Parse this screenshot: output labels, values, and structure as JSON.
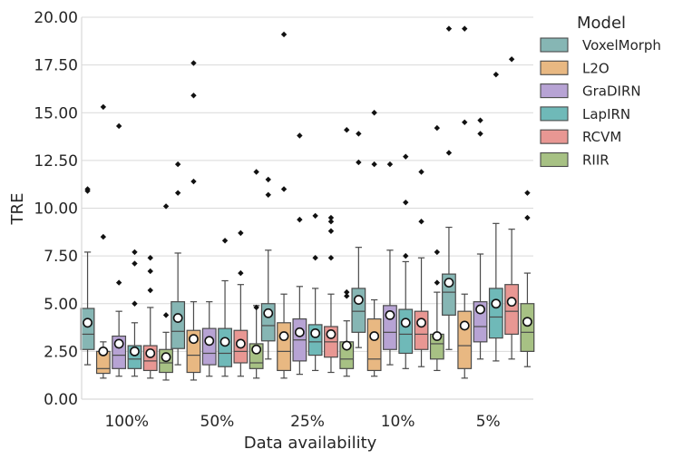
{
  "chart_data": {
    "type": "boxplot",
    "ylabel": "TRE",
    "xlabel": "Data availability",
    "ylim": [
      0,
      20
    ],
    "yticks": [
      "0.00",
      "2.50",
      "5.00",
      "7.50",
      "10.00",
      "12.50",
      "15.00",
      "17.50",
      "20.00"
    ],
    "grid": "horizontal",
    "legend_placement": "right",
    "legend_title": "Model",
    "categories": [
      "100%",
      "50%",
      "25%",
      "10%",
      "5%"
    ],
    "series": [
      {
        "name": "VoxelMorph",
        "color": "#86b6b4",
        "boxes": [
          {
            "whisker_low": 1.8,
            "q1": 2.6,
            "median": 3.4,
            "q3": 4.75,
            "whisker_high": 7.7,
            "mean": 4.0,
            "outliers": [
              10.9,
              11.0
            ]
          },
          {
            "whisker_low": 1.8,
            "q1": 2.65,
            "median": 3.55,
            "q3": 5.1,
            "whisker_high": 7.65,
            "mean": 4.25,
            "outliers": [
              10.8,
              12.3
            ]
          },
          {
            "whisker_low": 2.1,
            "q1": 3.05,
            "median": 3.85,
            "q3": 5.0,
            "whisker_high": 7.8,
            "mean": 4.5,
            "outliers": [
              10.7,
              11.5
            ]
          },
          {
            "whisker_low": 2.7,
            "q1": 3.5,
            "median": 4.6,
            "q3": 5.8,
            "whisker_high": 7.95,
            "mean": 5.2,
            "outliers": [
              12.4,
              13.9
            ]
          },
          {
            "whisker_low": 2.6,
            "q1": 4.4,
            "median": 5.6,
            "q3": 6.55,
            "whisker_high": 9.0,
            "mean": 6.1,
            "outliers": [
              12.9,
              19.4
            ]
          }
        ]
      },
      {
        "name": "L2O",
        "color": "#e8b882",
        "boxes": [
          {
            "whisker_low": 1.1,
            "q1": 1.35,
            "median": 1.6,
            "q3": 2.5,
            "whisker_high": 3.0,
            "mean": 2.5,
            "outliers": [
              8.5,
              15.3
            ]
          },
          {
            "whisker_low": 1.0,
            "q1": 1.4,
            "median": 2.3,
            "q3": 3.6,
            "whisker_high": 5.1,
            "mean": 3.15,
            "outliers": [
              11.4,
              15.9,
              17.6
            ]
          },
          {
            "whisker_low": 1.1,
            "q1": 1.5,
            "median": 2.5,
            "q3": 4.0,
            "whisker_high": 5.5,
            "mean": 3.3,
            "outliers": [
              11.0,
              19.1
            ]
          },
          {
            "whisker_low": 1.2,
            "q1": 1.5,
            "median": 2.1,
            "q3": 4.2,
            "whisker_high": 5.2,
            "mean": 3.3,
            "outliers": [
              12.3,
              15.0
            ]
          },
          {
            "whisker_low": 1.1,
            "q1": 1.6,
            "median": 2.8,
            "q3": 4.6,
            "whisker_high": 5.5,
            "mean": 3.85,
            "outliers": [
              14.5,
              19.4
            ]
          }
        ]
      },
      {
        "name": "GraDIRN",
        "color": "#b7a3d4",
        "boxes": [
          {
            "whisker_low": 1.2,
            "q1": 1.6,
            "median": 2.3,
            "q3": 3.3,
            "whisker_high": 4.6,
            "mean": 2.9,
            "outliers": [
              6.1,
              14.3
            ]
          },
          {
            "whisker_low": 1.2,
            "q1": 1.8,
            "median": 2.4,
            "q3": 3.7,
            "whisker_high": 5.1,
            "mean": 3.05,
            "outliers": []
          },
          {
            "whisker_low": 1.3,
            "q1": 2.0,
            "median": 3.1,
            "q3": 4.2,
            "whisker_high": 5.9,
            "mean": 3.5,
            "outliers": [
              9.4,
              13.8
            ]
          },
          {
            "whisker_low": 1.8,
            "q1": 2.6,
            "median": 3.5,
            "q3": 4.9,
            "whisker_high": 7.8,
            "mean": 4.4,
            "outliers": [
              12.3
            ]
          },
          {
            "whisker_low": 2.1,
            "q1": 3.0,
            "median": 3.8,
            "q3": 5.1,
            "whisker_high": 7.6,
            "mean": 4.7,
            "outliers": [
              13.9,
              14.6
            ]
          }
        ]
      },
      {
        "name": "LapIRN",
        "color": "#6fb9b8",
        "boxes": [
          {
            "whisker_low": 1.2,
            "q1": 1.6,
            "median": 2.1,
            "q3": 2.8,
            "whisker_high": 4.0,
            "mean": 2.5,
            "outliers": [
              5.0,
              7.1,
              7.7
            ]
          },
          {
            "whisker_low": 1.2,
            "q1": 1.7,
            "median": 2.4,
            "q3": 3.7,
            "whisker_high": 6.2,
            "mean": 3.0,
            "outliers": [
              8.3
            ]
          },
          {
            "whisker_low": 1.5,
            "q1": 2.3,
            "median": 3.0,
            "q3": 3.9,
            "whisker_high": 5.8,
            "mean": 3.45,
            "outliers": [
              7.4,
              9.6
            ]
          },
          {
            "whisker_low": 1.6,
            "q1": 2.4,
            "median": 3.4,
            "q3": 4.7,
            "whisker_high": 7.2,
            "mean": 4.0,
            "outliers": [
              7.5,
              10.3,
              12.7
            ]
          },
          {
            "whisker_low": 2.0,
            "q1": 3.2,
            "median": 4.3,
            "q3": 5.8,
            "whisker_high": 9.2,
            "mean": 5.0,
            "outliers": [
              17.0
            ]
          }
        ]
      },
      {
        "name": "RCVM",
        "color": "#e89793",
        "boxes": [
          {
            "whisker_low": 1.1,
            "q1": 1.5,
            "median": 2.0,
            "q3": 2.8,
            "whisker_high": 4.8,
            "mean": 2.4,
            "outliers": [
              5.7,
              6.7,
              7.4
            ]
          },
          {
            "whisker_low": 1.2,
            "q1": 1.9,
            "median": 2.5,
            "q3": 3.6,
            "whisker_high": 6.0,
            "mean": 2.9,
            "outliers": [
              6.6,
              8.7
            ]
          },
          {
            "whisker_low": 1.4,
            "q1": 2.2,
            "median": 3.0,
            "q3": 3.8,
            "whisker_high": 5.5,
            "mean": 3.4,
            "outliers": [
              7.4,
              8.8,
              9.3,
              9.5
            ]
          },
          {
            "whisker_low": 1.7,
            "q1": 2.6,
            "median": 3.4,
            "q3": 4.6,
            "whisker_high": 7.4,
            "mean": 4.0,
            "outliers": [
              9.3,
              11.9
            ]
          },
          {
            "whisker_low": 2.1,
            "q1": 3.4,
            "median": 4.6,
            "q3": 6.0,
            "whisker_high": 8.9,
            "mean": 5.1,
            "outliers": [
              17.8
            ]
          }
        ]
      },
      {
        "name": "RIIR",
        "color": "#a7c184",
        "boxes": [
          {
            "whisker_low": 1.0,
            "q1": 1.4,
            "median": 1.9,
            "q3": 2.6,
            "whisker_high": 3.5,
            "mean": 2.2,
            "outliers": [
              4.4,
              10.1
            ]
          },
          {
            "whisker_low": 1.1,
            "q1": 1.6,
            "median": 1.9,
            "q3": 2.9,
            "whisker_high": 4.9,
            "mean": 2.6,
            "outliers": [
              4.8,
              11.9
            ]
          },
          {
            "whisker_low": 1.2,
            "q1": 1.6,
            "median": 2.1,
            "q3": 3.0,
            "whisker_high": 4.1,
            "mean": 2.8,
            "outliers": [
              5.4,
              5.6,
              14.1
            ]
          },
          {
            "whisker_low": 1.5,
            "q1": 2.1,
            "median": 2.9,
            "q3": 3.4,
            "whisker_high": 5.6,
            "mean": 3.3,
            "outliers": [
              6.1,
              7.7,
              14.2
            ]
          },
          {
            "whisker_low": 1.7,
            "q1": 2.5,
            "median": 3.5,
            "q3": 5.0,
            "whisker_high": 6.6,
            "mean": 4.05,
            "outliers": [
              9.5,
              10.8
            ]
          }
        ]
      }
    ]
  }
}
